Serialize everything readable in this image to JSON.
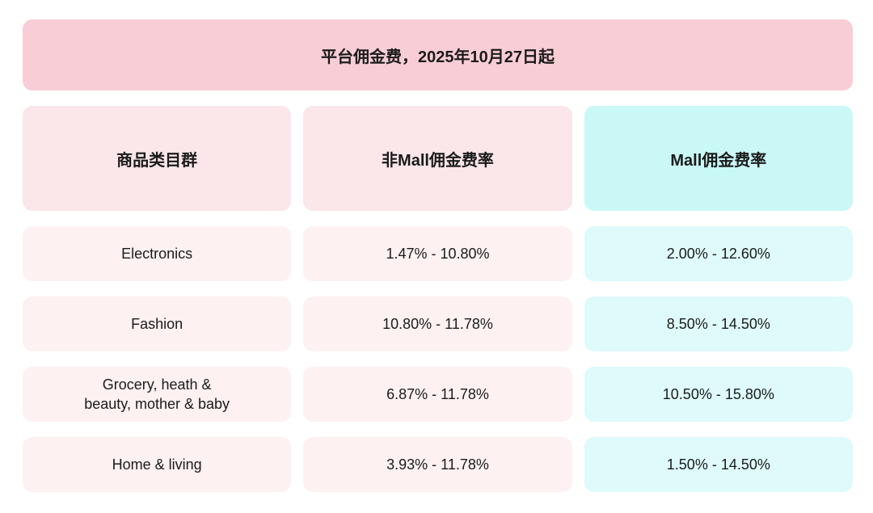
{
  "banner": {
    "title": "平台佣金费，2025年10月27日起"
  },
  "table": {
    "columns": [
      {
        "label": "商品类目群"
      },
      {
        "label": "非Mall佣金费率"
      },
      {
        "label": "Mall佣金费率"
      }
    ],
    "rows": [
      {
        "category": "Electronics",
        "non_mall": "1.47% - 10.80%",
        "mall": "2.00% - 12.60%"
      },
      {
        "category": "Fashion",
        "non_mall": "10.80% - 11.78%",
        "mall": "8.50% - 14.50%"
      },
      {
        "category": "Grocery, heath &\nbeauty, mother & baby",
        "non_mall": "6.87% - 11.78%",
        "mall": "10.50% - 15.80%"
      },
      {
        "category": "Home & living",
        "non_mall": "3.93% - 11.78%",
        "mall": "1.50% - 14.50%"
      }
    ]
  },
  "chart_data": {
    "type": "table",
    "title": "平台佣金费，2025年10月27日起",
    "columns": [
      "商品类目群",
      "非Mall佣金费率",
      "Mall佣金费率"
    ],
    "rows": [
      [
        "Electronics",
        "1.47% - 10.80%",
        "2.00% - 12.60%"
      ],
      [
        "Fashion",
        "10.80% - 11.78%",
        "8.50% - 14.50%"
      ],
      [
        "Grocery, heath & beauty, mother & baby",
        "6.87% - 11.78%",
        "10.50% - 15.80%"
      ],
      [
        "Home & living",
        "3.93% - 11.78%",
        "1.50% - 14.50%"
      ]
    ],
    "non_mall_rate_ranges_pct": [
      [
        1.47,
        10.8
      ],
      [
        10.8,
        11.78
      ],
      [
        6.87,
        11.78
      ],
      [
        3.93,
        11.78
      ]
    ],
    "mall_rate_ranges_pct": [
      [
        2.0,
        12.6
      ],
      [
        8.5,
        14.5
      ],
      [
        10.5,
        15.8
      ],
      [
        1.5,
        14.5
      ]
    ]
  },
  "colors": {
    "banner_bg": "#f8cdd6",
    "header_pink_bg": "#fbe6ea",
    "header_cyan_bg": "#c9f8f7",
    "row_pink_bg": "#fdf1f2",
    "row_cyan_bg": "#defafa",
    "text": "#1b1b1b"
  }
}
